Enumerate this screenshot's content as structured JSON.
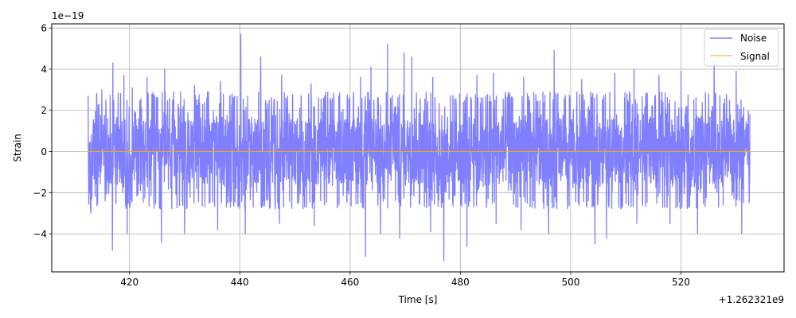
{
  "chart_data": {
    "type": "line",
    "xlabel": "Time [s]",
    "ylabel": "Strain",
    "x_offset_label": "+1.262321e9",
    "y_scale_label": "1e−19",
    "xlim": [
      405.9,
      538.7
    ],
    "ylim": [
      -5.85,
      6.2
    ],
    "x_ticks": [
      420,
      440,
      460,
      480,
      500,
      520
    ],
    "x_tick_labels": [
      "420",
      "440",
      "460",
      "480",
      "500",
      "520"
    ],
    "y_ticks": [
      -4,
      -2,
      0,
      2,
      4,
      6
    ],
    "y_tick_labels": [
      "−4",
      "−2",
      "0",
      "2",
      "4",
      "6"
    ],
    "grid": true,
    "legend_position": "top-right",
    "series": [
      {
        "name": "Noise",
        "color": "#7f7fff",
        "x_range": [
          412.5,
          532.5
        ],
        "typical_range": [
          -2.8,
          2.9
        ],
        "peaks": [
          [
            413.0,
            2.9
          ],
          [
            415.0,
            3.0
          ],
          [
            417.0,
            4.3
          ],
          [
            419.0,
            3.7
          ],
          [
            420.5,
            3.1
          ],
          [
            423.2,
            3.6
          ],
          [
            426.4,
            4.0
          ],
          [
            431.8,
            3.2
          ],
          [
            436.5,
            3.4
          ],
          [
            440.2,
            5.7
          ],
          [
            443.8,
            4.6
          ],
          [
            447.6,
            3.7
          ],
          [
            452.9,
            3.3
          ],
          [
            461.9,
            3.6
          ],
          [
            463.8,
            4.1
          ],
          [
            466.8,
            5.2
          ],
          [
            469.8,
            4.8
          ],
          [
            471.2,
            4.6
          ],
          [
            475.0,
            3.6
          ],
          [
            477.0,
            3.8
          ],
          [
            483.0,
            3.7
          ],
          [
            486.0,
            3.8
          ],
          [
            491.5,
            3.6
          ],
          [
            497.0,
            4.9
          ],
          [
            502.0,
            3.5
          ],
          [
            508.0,
            3.8
          ],
          [
            511.5,
            4.0
          ],
          [
            516.0,
            3.7
          ],
          [
            520.0,
            3.9
          ],
          [
            526.0,
            4.4
          ],
          [
            530.0,
            3.9
          ]
        ],
        "troughs": [
          [
            413.0,
            -3.0
          ],
          [
            416.9,
            -4.8
          ],
          [
            419.6,
            -4.0
          ],
          [
            425.8,
            -4.4
          ],
          [
            430.0,
            -4.0
          ],
          [
            436.0,
            -3.8
          ],
          [
            441.0,
            -4.0
          ],
          [
            447.2,
            -3.5
          ],
          [
            453.5,
            -3.6
          ],
          [
            462.8,
            -5.1
          ],
          [
            465.5,
            -4.0
          ],
          [
            469.0,
            -4.2
          ],
          [
            474.6,
            -3.9
          ],
          [
            477.0,
            -5.3
          ],
          [
            481.2,
            -4.6
          ],
          [
            486.5,
            -3.5
          ],
          [
            491.0,
            -3.8
          ],
          [
            496.0,
            -4.0
          ],
          [
            504.4,
            -4.5
          ],
          [
            506.5,
            -4.2
          ],
          [
            512.0,
            -3.5
          ],
          [
            518.0,
            -3.5
          ],
          [
            523.0,
            -4.0
          ],
          [
            531.0,
            -4.0
          ]
        ]
      },
      {
        "name": "Signal",
        "color": "#ffa500",
        "x": [
          412.5,
          532.5
        ],
        "y": [
          0,
          0
        ]
      }
    ]
  }
}
